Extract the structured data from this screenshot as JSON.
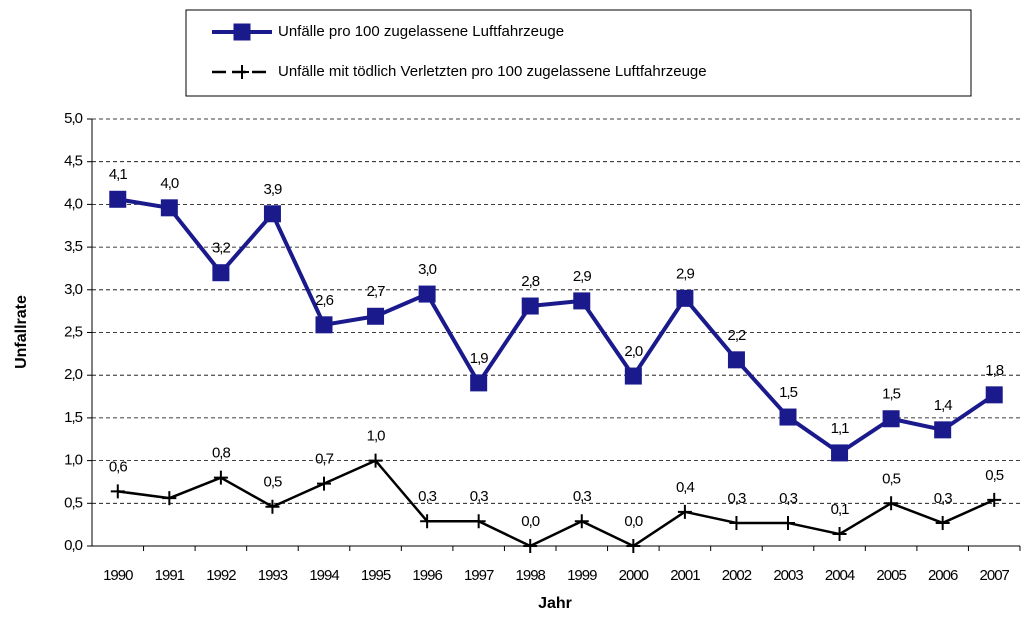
{
  "chart_data": {
    "type": "line",
    "x_label": "Jahr",
    "y_label": "Unfallrate",
    "categories": [
      "1990",
      "1991",
      "1992",
      "1993",
      "1994",
      "1995",
      "1996",
      "1997",
      "1998",
      "1999",
      "2000",
      "2001",
      "2002",
      "2003",
      "2004",
      "2005",
      "2006",
      "2007"
    ],
    "series": [
      {
        "name": "Unfälle pro 100 zugelassene Luftfahrzeuge",
        "color": "#1a1a8c",
        "marker": "square",
        "values": [
          4.06,
          3.96,
          3.2,
          3.89,
          2.59,
          2.69,
          2.95,
          1.91,
          2.81,
          2.87,
          1.99,
          2.9,
          2.18,
          1.51,
          1.09,
          1.49,
          1.36,
          1.77
        ],
        "value_labels": [
          "4,1",
          "4,0",
          "3,2",
          "3,9",
          "2,6",
          "2,7",
          "3,0",
          "1,9",
          "2,8",
          "2,9",
          "2,0",
          "2,9",
          "2,2",
          "1,5",
          "1,1",
          "1,5",
          "1,4",
          "1,8"
        ]
      },
      {
        "name": "Unfälle mit tödlich Verletzten pro 100 zugelassene Luftfahrzeuge",
        "color": "#000000",
        "marker": "plus",
        "values": [
          0.64,
          0.56,
          0.8,
          0.46,
          0.73,
          1.0,
          0.29,
          0.29,
          0,
          0.29,
          0,
          0.4,
          0.27,
          0.27,
          0.14,
          0.5,
          0.27,
          0.54
        ],
        "value_labels": [
          "0,6",
          null,
          "0,8",
          "0,5",
          "0,7",
          "1,0",
          "0,3",
          "0,3",
          "0,0",
          "0,3",
          "0,0",
          "0,4",
          "0,3",
          "0,3",
          "0,1",
          "0,5",
          "0,3",
          "0,5"
        ]
      }
    ],
    "ylim": [
      0,
      5
    ],
    "yticks": [
      {
        "value": 0,
        "label": "0,0"
      },
      {
        "value": 0.5,
        "label": "0,5"
      },
      {
        "value": 1,
        "label": "1,0"
      },
      {
        "value": 1.5,
        "label": "1,5"
      },
      {
        "value": 2,
        "label": "2,0"
      },
      {
        "value": 2.5,
        "label": "2,5"
      },
      {
        "value": 3,
        "label": "3,0"
      },
      {
        "value": 3.5,
        "label": "3,5"
      },
      {
        "value": 4,
        "label": "4,0"
      },
      {
        "value": 4.5,
        "label": "4,5"
      },
      {
        "value": 5,
        "label": "5,0"
      }
    ],
    "grid": true,
    "legend": "top"
  }
}
